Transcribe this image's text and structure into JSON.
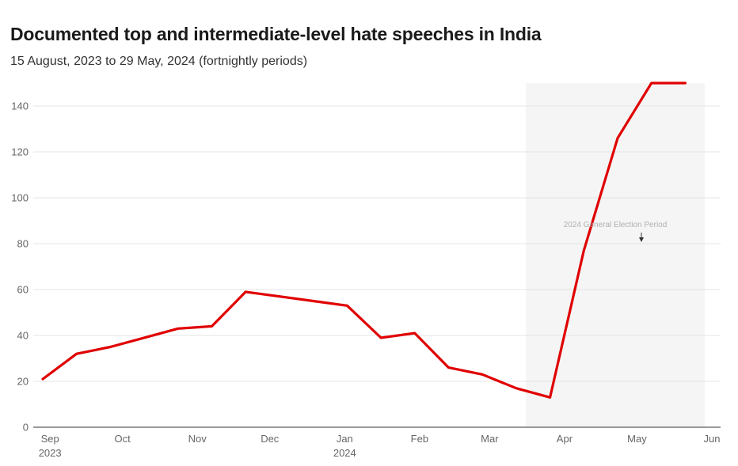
{
  "title": "Documented top and intermediate-level hate speeches in India",
  "subtitle": "15 August, 2023 to 29 May, 2024 (fortnightly periods)",
  "chart_data": {
    "type": "line",
    "title": "Documented top and intermediate-level hate speeches in India",
    "subtitle": "15 August, 2023 to 29 May, 2024 (fortnightly periods)",
    "xlabel": "",
    "ylabel": "",
    "x": [
      "2023-08-29",
      "2023-09-12",
      "2023-09-26",
      "2023-10-10",
      "2023-10-24",
      "2023-11-07",
      "2023-11-21",
      "2023-12-05",
      "2023-12-19",
      "2024-01-02",
      "2024-01-16",
      "2024-01-30",
      "2024-02-13",
      "2024-02-27",
      "2024-03-12",
      "2024-03-26",
      "2024-04-09",
      "2024-04-23",
      "2024-05-07",
      "2024-05-21"
    ],
    "series": [
      {
        "values": [
          21,
          32,
          35,
          39,
          43,
          44,
          59,
          57,
          55,
          53,
          39,
          41,
          26,
          23,
          17,
          13,
          77,
          126,
          150,
          150
        ]
      }
    ],
    "ylim": [
      0,
      150
    ],
    "yticks": [
      0,
      20,
      40,
      60,
      80,
      100,
      120,
      140
    ],
    "xticks": [
      {
        "date": "2023-09-01",
        "label": "Sep",
        "sublabel": "2023"
      },
      {
        "date": "2023-10-01",
        "label": "Oct",
        "sublabel": ""
      },
      {
        "date": "2023-11-01",
        "label": "Nov",
        "sublabel": ""
      },
      {
        "date": "2023-12-01",
        "label": "Dec",
        "sublabel": ""
      },
      {
        "date": "2024-01-01",
        "label": "Jan",
        "sublabel": "2024"
      },
      {
        "date": "2024-02-01",
        "label": "Feb",
        "sublabel": ""
      },
      {
        "date": "2024-03-01",
        "label": "Mar",
        "sublabel": ""
      },
      {
        "date": "2024-04-01",
        "label": "Apr",
        "sublabel": ""
      },
      {
        "date": "2024-05-01",
        "label": "May",
        "sublabel": ""
      },
      {
        "date": "2024-06-01",
        "label": "Jun",
        "sublabel": ""
      }
    ],
    "xlim": [
      "2023-08-29",
      "2024-06-01"
    ],
    "shaded_region": {
      "start": "2024-03-16",
      "end": "2024-05-29",
      "label": "2024 General Election Period",
      "color": "#f5f5f5"
    },
    "line_color": "#e00000",
    "grid": true
  }
}
